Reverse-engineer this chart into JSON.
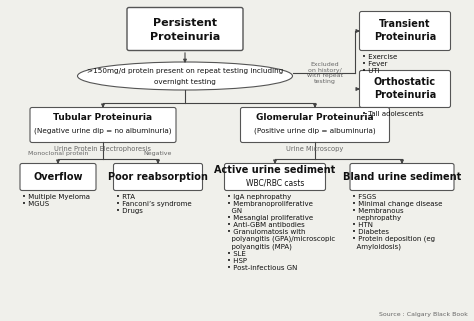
{
  "bg_color": "#f0f0eb",
  "box_color": "#ffffff",
  "box_edge": "#555555",
  "arrow_color": "#444444",
  "font_color": "#111111",
  "gray_color": "#666666",
  "source_text": "Source : Calgary Black Book",
  "transient_bullets": "• Exercise\n• Fever\n• UTI",
  "orthostatic_bullets": "• Tall adolescents",
  "excluded_text": "Excluded\non history/\nwith repeat\ntesting",
  "overflow_bullets": "• Multiple Myeloma\n• MGUS",
  "poor_bullets": "• RTA\n• Fanconi’s syndrome\n• Drugs",
  "active_bullets": "• IgA nephropathy\n• Membranoproliferative\n  GN\n• Mesangial proliferative\n• Anti-GBM antibodies\n• Granulomatosis with\n  polyangitis (GPA)/microscopic\n  polyangitis (MPA)\n• SLE\n• HSP\n• Post-infectious GN",
  "bland_bullets": "• FSGS\n• Minimal change disease\n• Membranous\n  nephropathy\n• HTN\n• Diabetes\n• Protein deposition (eg\n  Amyloidosis)",
  "urine_protein_label": "Urine Protein Electrophoresis",
  "monoclonal_label": "Monoclonal protein",
  "negative_label": "Negative",
  "urine_micro_label": "Urine Microscopy"
}
